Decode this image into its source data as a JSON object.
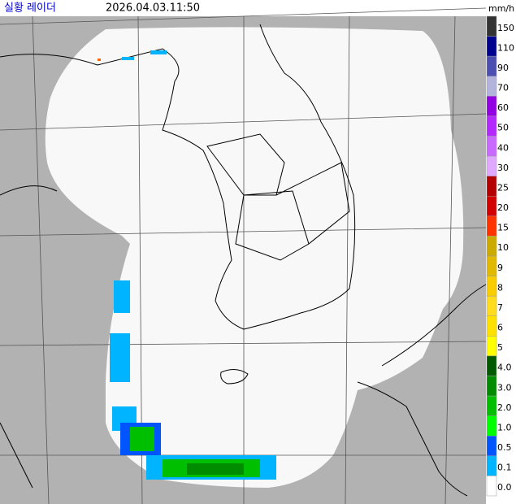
{
  "header": {
    "title": "실황 레이더",
    "timestamp": "2026.04.03.11:50",
    "unit": "mm/h"
  },
  "legend": [
    {
      "label": "150",
      "color": "#333333"
    },
    {
      "label": "110",
      "color": "#000390"
    },
    {
      "label": "90",
      "color": "#4c4eb1"
    },
    {
      "label": "70",
      "color": "#b3b4de"
    },
    {
      "label": "60",
      "color": "#9300e4"
    },
    {
      "label": "50",
      "color": "#b329ff"
    },
    {
      "label": "40",
      "color": "#c969ff"
    },
    {
      "label": "30",
      "color": "#e0a9ff"
    },
    {
      "label": "25",
      "color": "#b40000"
    },
    {
      "label": "20",
      "color": "#d20000"
    },
    {
      "label": "15",
      "color": "#ff3300"
    },
    {
      "label": "10",
      "color": "#ccaa00"
    },
    {
      "label": "9",
      "color": "#e0b900"
    },
    {
      "label": "8",
      "color": "#f9cd00"
    },
    {
      "label": "7",
      "color": "#ffdc1f"
    },
    {
      "label": "6",
      "color": "#ffe100"
    },
    {
      "label": "5",
      "color": "#ffff00"
    },
    {
      "label": "4.0",
      "color": "#005a00"
    },
    {
      "label": "3.0",
      "color": "#008c00"
    },
    {
      "label": "2.0",
      "color": "#00be00"
    },
    {
      "label": "1.0",
      "color": "#00ff00"
    },
    {
      "label": "0.5",
      "color": "#0055ff"
    },
    {
      "label": "0.1",
      "color": "#00b4ff"
    },
    {
      "label": "0.0",
      "color": "#ffffff"
    }
  ]
}
